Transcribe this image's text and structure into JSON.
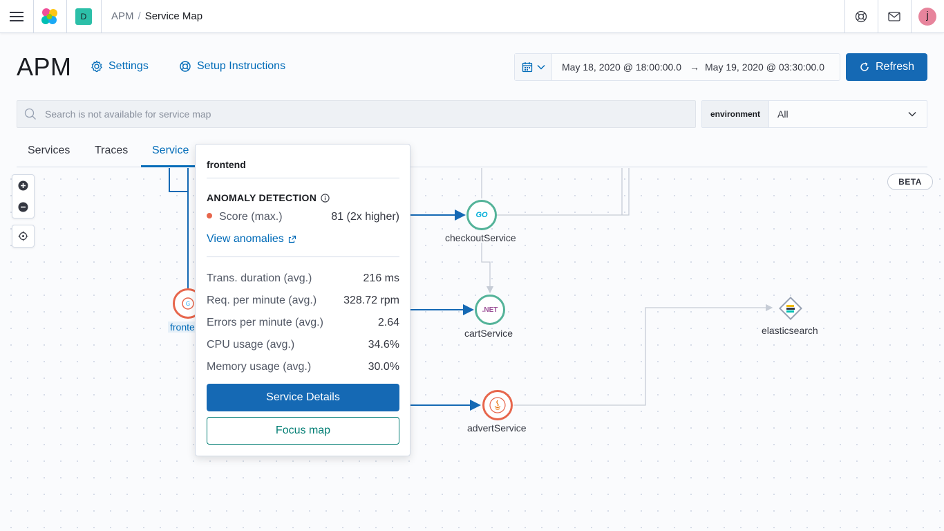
{
  "header": {
    "space_initial": "D",
    "breadcrumbs": [
      "APM",
      "Service Map"
    ],
    "avatar_initial": "j",
    "icons": [
      "menu-icon",
      "elastic-logo",
      "help-icon",
      "newsfeed-icon"
    ]
  },
  "page": {
    "title": "APM",
    "settings_label": "Settings",
    "setup_label": "Setup Instructions"
  },
  "datepicker": {
    "start": "May 18, 2020 @ 18:00:00.0",
    "arrow": "→",
    "end": "May 19, 2020 @ 03:30:00.0",
    "refresh_label": "Refresh"
  },
  "search": {
    "placeholder": "Search is not available for service map"
  },
  "environment": {
    "label": "environment",
    "value": "All"
  },
  "tabs": [
    "Services",
    "Traces",
    "Service"
  ],
  "map": {
    "beta_label": "BETA",
    "nodes": {
      "frontend": "fronte",
      "checkout": "checkoutService",
      "cart": "cartService",
      "advert": "advertService",
      "elasticsearch": "elasticsearch"
    },
    "badges": {
      "go": "GO",
      "net": ".NET"
    }
  },
  "popover": {
    "title": "frontend",
    "section": "ANOMALY DETECTION",
    "score_label": "Score (max.)",
    "score_value": "81 (2x higher)",
    "view_anomalies": "View anomalies",
    "metrics": [
      {
        "label": "Trans. duration (avg.)",
        "value": "216 ms"
      },
      {
        "label": "Req. per minute (avg.)",
        "value": "328.72 rpm"
      },
      {
        "label": "Errors per minute (avg.)",
        "value": "2.64"
      },
      {
        "label": "CPU usage (avg.)",
        "value": "34.6%"
      },
      {
        "label": "Memory usage (avg.)",
        "value": "30.0%"
      }
    ],
    "service_details": "Service Details",
    "focus_map": "Focus map"
  },
  "colors": {
    "primary": "#1569b4",
    "link": "#006bb8",
    "anomaly_dot": "#e7664c",
    "focus_border": "#017d73",
    "frontend_ring": "#e7664c"
  }
}
